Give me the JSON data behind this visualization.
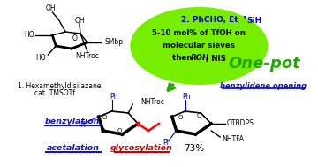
{
  "bg_color": "#ffffff",
  "bubble_color": "#77ee00",
  "onepot_text": "One-pot",
  "onepot_color": "#22aa00",
  "benzylidene_text": "benzylidene opening",
  "benzylidene_color": "#1111cc",
  "benzylation_text": "benzylation",
  "benzylation_color": "#1111cc",
  "acetalation_text": "acetalation",
  "acetalation_color": "#1111cc",
  "glycosylation_text": "glycosylation",
  "glycosylation_color": "#cc0000",
  "percent_text": "73%",
  "step1_line1": "1. Hexamethyldisilazane",
  "step1_line2": "cat. TMSOTf",
  "nhtfa_text": "NHTFA",
  "otbdps_text": "OTBDPS",
  "nhtroc_top": "NHTroc",
  "nhtroc_mid": "NHTroc",
  "smbp_text": "SMbp"
}
